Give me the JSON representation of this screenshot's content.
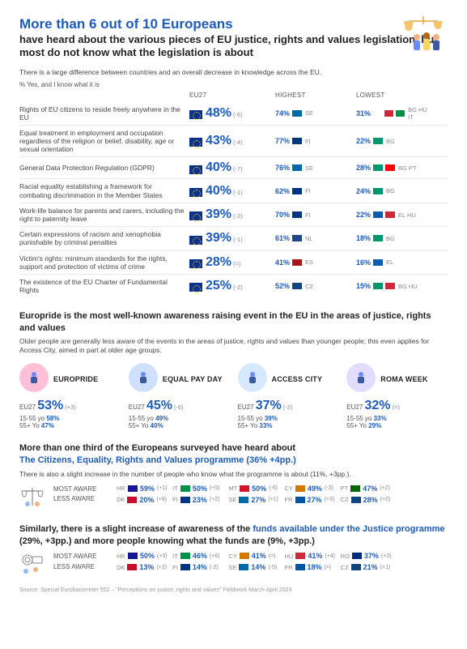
{
  "header": {
    "title_line1": "More than 6 out of 10 Europeans",
    "title_line2": "have heard about the various pieces of EU justice, rights and values legislation, but most do not know what the legislation is about",
    "intro": "There is a large difference between countries and an overall decrease in knowledge across the EU.",
    "note": "% Yes, and I know what it is"
  },
  "colors": {
    "primary": "#1d5bbf",
    "text": "#3b3b3b",
    "muted": "#888888",
    "divider": "#eaeaea",
    "euflag": "#0a318e"
  },
  "col_headers": {
    "c2": "EU27",
    "c3": "HIGHEST",
    "c4": "LOWEST"
  },
  "rows": [
    {
      "label": "Rights of EU citizens to reside freely anywhere in the EU",
      "eu27": "48%",
      "delta": "(-6)",
      "hi": {
        "pct": "74%",
        "flags": [
          "#006aa7"
        ],
        "cc": "SE"
      },
      "lo": {
        "pct": "31%",
        "flags": [
          "#ffffff",
          "#ce2b37",
          "#009246"
        ],
        "cc": "BG HU IT"
      }
    },
    {
      "label": "Equal treatment in employment and occupation regardless of the religion or belief, disability, age or sexual orientation",
      "eu27": "43%",
      "delta": "(-4)",
      "hi": {
        "pct": "77%",
        "flags": [
          "#003580"
        ],
        "cc": "FI"
      },
      "lo": {
        "pct": "22%",
        "flags": [
          "#00966e"
        ],
        "cc": "BG"
      }
    },
    {
      "label": "General Data Protection Regulation (GDPR)",
      "eu27": "40%",
      "delta": "(-7)",
      "hi": {
        "pct": "76%",
        "flags": [
          "#006aa7"
        ],
        "cc": "SE"
      },
      "lo": {
        "pct": "28%",
        "flags": [
          "#00966e",
          "#ff0000"
        ],
        "cc": "BG PT"
      }
    },
    {
      "label": "Racial equality establishing a framework for combating discrimination in the Member States",
      "eu27": "40%",
      "delta": "(-1)",
      "hi": {
        "pct": "62%",
        "flags": [
          "#003580"
        ],
        "cc": "FI"
      },
      "lo": {
        "pct": "24%",
        "flags": [
          "#00966e"
        ],
        "cc": "BG"
      }
    },
    {
      "label": "Work-life balance for parents and carers, including the right to paternity leave",
      "eu27": "39%",
      "delta": "(-2)",
      "hi": {
        "pct": "70%",
        "flags": [
          "#003580"
        ],
        "cc": "FI"
      },
      "lo": {
        "pct": "22%",
        "flags": [
          "#0d5eaf",
          "#ce2939"
        ],
        "cc": "EL HU"
      }
    },
    {
      "label": "Certain expressions of racism and xenophobia punishable by criminal penalties",
      "eu27": "39%",
      "delta": "(-1)",
      "hi": {
        "pct": "61%",
        "flags": [
          "#21468b"
        ],
        "cc": "NL"
      },
      "lo": {
        "pct": "18%",
        "flags": [
          "#00966e"
        ],
        "cc": "BG"
      }
    },
    {
      "label": "Victim's rights: minimum standards for the rights, support and protection of victims of crime",
      "eu27": "28%",
      "delta": "(=)",
      "hi": {
        "pct": "41%",
        "flags": [
          "#aa151b"
        ],
        "cc": "ES"
      },
      "lo": {
        "pct": "16%",
        "flags": [
          "#0d5eaf"
        ],
        "cc": "EL"
      }
    },
    {
      "label": "The existence of the EU Charter of Fundamental Rights",
      "eu27": "25%",
      "delta": "(-2)",
      "hi": {
        "pct": "52%",
        "flags": [
          "#11457e"
        ],
        "cc": "CZ"
      },
      "lo": {
        "pct": "15%",
        "flags": [
          "#00966e",
          "#ce2939"
        ],
        "cc": "BG HU"
      }
    }
  ],
  "events_section": {
    "heading": "Europride is the most well-known awareness raising event in the EU in the areas of justice, rights and values",
    "paragraph": "Older people are generally less aware of the events in the areas of justice, rights and values than younger people; this even applies for Access City, aimed in part at older age groups."
  },
  "events": [
    {
      "name": "EUROPRIDE",
      "eu27": "53%",
      "delta": "(+3)",
      "y": "58%",
      "o": "47%",
      "icon_bg": "#ffbfd6"
    },
    {
      "name": "EQUAL PAY DAY",
      "eu27": "45%",
      "delta": "(-6)",
      "y": "49%",
      "o": "40%",
      "icon_bg": "#cfe0ff"
    },
    {
      "name": "ACCESS CITY",
      "eu27": "37%",
      "delta": "(-2)",
      "y": "39%",
      "o": "33%",
      "icon_bg": "#d7e9ff"
    },
    {
      "name": "ROMA WEEK",
      "eu27": "32%",
      "delta": "(=)",
      "y": "33%",
      "o": "29%",
      "icon_bg": "#e2dcff"
    }
  ],
  "event_labels": {
    "eu27": "EU27",
    "young": "15-55 yo",
    "old": "55+ Yo"
  },
  "prog1": {
    "line_a": "More than one third of the Europeans surveyed have heard about",
    "line_b": "The Citizens, Equality, Rights and Values programme (36% +4pp.)",
    "p": "There is also a slight increase in the number of people who know what the programme is about (11%, +3pp.).",
    "most": "MOST AWARE",
    "less": "LESS AWARE",
    "most_row": [
      {
        "cc": "HR",
        "pct": "59%",
        "d": "(+1)"
      },
      {
        "cc": "IT",
        "pct": "50%",
        "d": "(+5)"
      },
      {
        "cc": "MT",
        "pct": "50%",
        "d": "(-6)"
      },
      {
        "cc": "CY",
        "pct": "49%",
        "d": "(-3)"
      },
      {
        "cc": "PT",
        "pct": "47%",
        "d": "(+2)"
      }
    ],
    "less_row": [
      {
        "cc": "DK",
        "pct": "20%",
        "d": "(+8)"
      },
      {
        "cc": "FI",
        "pct": "23%",
        "d": "(+2)"
      },
      {
        "cc": "SE",
        "pct": "27%",
        "d": "(+1)"
      },
      {
        "cc": "FR",
        "pct": "27%",
        "d": "(+3)"
      },
      {
        "cc": "CZ",
        "pct": "28%",
        "d": "(+2)"
      }
    ]
  },
  "prog2": {
    "line_a": "Similarly, there is a slight increase of awareness of the ",
    "line_hl": "funds available under the Justice programme",
    "line_b": " (29%, +3pp.) and more people knowing what the funds are (9%, +3pp.)",
    "most": "MOST AWARE",
    "less": "LESS AWARE",
    "most_row": [
      {
        "cc": "HR",
        "pct": "50%",
        "d": "(+3)"
      },
      {
        "cc": "IT",
        "pct": "46%",
        "d": "(+6)"
      },
      {
        "cc": "CY",
        "pct": "41%",
        "d": "(=)"
      },
      {
        "cc": "HU",
        "pct": "41%",
        "d": "(+4)"
      },
      {
        "cc": "RO",
        "pct": "37%",
        "d": "(+3)"
      }
    ],
    "less_row": [
      {
        "cc": "DK",
        "pct": "13%",
        "d": "(+2)"
      },
      {
        "cc": "FI",
        "pct": "14%",
        "d": "(-2)"
      },
      {
        "cc": "SE",
        "pct": "14%",
        "d": "(-5)"
      },
      {
        "cc": "FR",
        "pct": "18%",
        "d": "(=)"
      },
      {
        "cc": "CZ",
        "pct": "21%",
        "d": "(+1)"
      }
    ]
  },
  "flag_colors": {
    "HR": "#171796",
    "IT": "#009246",
    "MT": "#cf142b",
    "CY": "#d57800",
    "PT": "#006600",
    "DK": "#c8102e",
    "FI": "#003580",
    "SE": "#006aa7",
    "FR": "#0055a4",
    "CZ": "#11457e",
    "HU": "#ce2939",
    "RO": "#002b7f"
  },
  "source": "Source: Special Eurobarometer 552 – \"Perceptions on justice, rights and values\" Fieldwork March-April 2024"
}
